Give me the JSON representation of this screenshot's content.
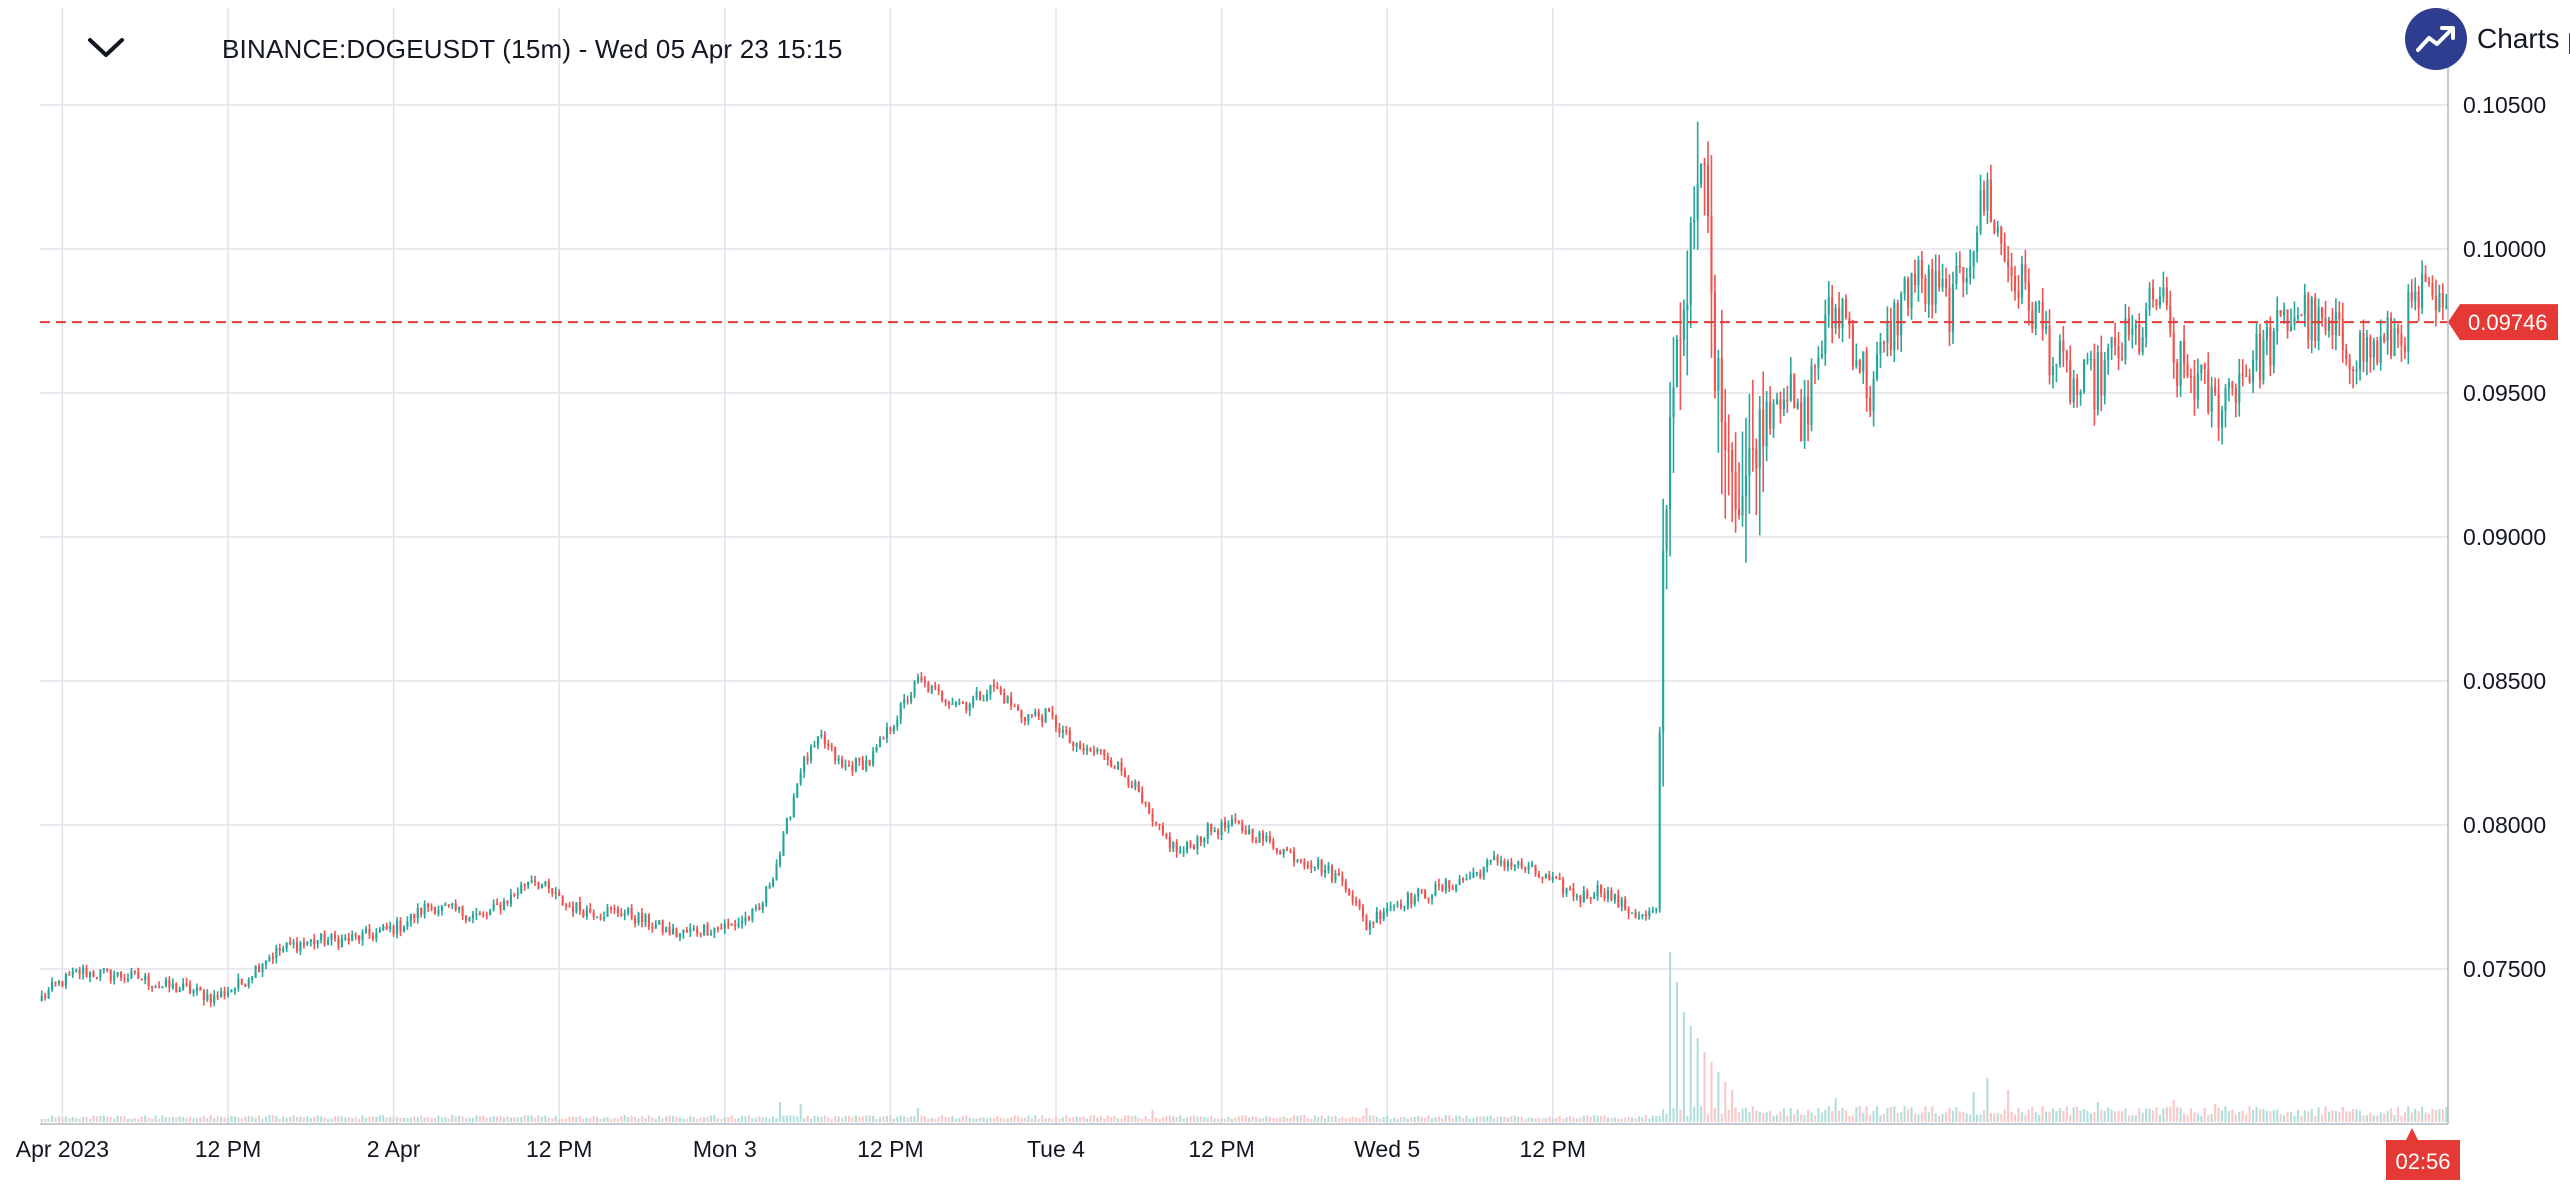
{
  "header": {
    "symbol_title": "BINANCE:DOGEUSDT (15m) - Wed 05 Apr 23 15:15",
    "collapse_icon": "chevron-down-icon"
  },
  "logo": {
    "text": "Charts p",
    "icon": "chart-trend-icon",
    "color": "#2e3d8f"
  },
  "colors": {
    "up": "#26a69a",
    "down": "#ef5350",
    "up_volume": "#b2dfdb",
    "down_volume": "#f8c9c8",
    "grid": "#e0e3eb",
    "price_line": "#e53935",
    "countdown_bg": "#e53935"
  },
  "countdown": "02:56",
  "chart_data": {
    "type": "candlestick",
    "symbol": "BINANCE:DOGEUSDT",
    "interval": "15m",
    "x_ticks": [
      "12 PM",
      "Apr 2023",
      "12 PM",
      "2 Apr",
      "12 PM",
      "Mon 3",
      "12 PM",
      "Tue 4",
      "12 PM",
      "Wed 5",
      "12 PM"
    ],
    "y_ticks": [
      "0.10500",
      "0.10000",
      "0.09500",
      "0.09000",
      "0.08500",
      "0.08000",
      "0.07500"
    ],
    "ylim": [
      0.0715,
      0.105
    ],
    "last_price": 0.09746,
    "grid": true,
    "candles_per_day": 96,
    "start_hour": 22.5,
    "price_anchors": [
      [
        0,
        0.074
      ],
      [
        5,
        0.0745
      ],
      [
        11,
        0.0749
      ],
      [
        20,
        0.0748
      ],
      [
        28,
        0.0747
      ],
      [
        35,
        0.0744
      ],
      [
        42,
        0.0743
      ],
      [
        50,
        0.074
      ],
      [
        58,
        0.0745
      ],
      [
        65,
        0.0754
      ],
      [
        72,
        0.0758
      ],
      [
        80,
        0.076
      ],
      [
        88,
        0.076
      ],
      [
        96,
        0.0762
      ],
      [
        104,
        0.0765
      ],
      [
        112,
        0.0772
      ],
      [
        120,
        0.077
      ],
      [
        128,
        0.0768
      ],
      [
        136,
        0.0775
      ],
      [
        142,
        0.0782
      ],
      [
        146,
        0.0778
      ],
      [
        152,
        0.0772
      ],
      [
        160,
        0.077
      ],
      [
        168,
        0.077
      ],
      [
        176,
        0.0766
      ],
      [
        184,
        0.0762
      ],
      [
        192,
        0.0764
      ],
      [
        200,
        0.0765
      ],
      [
        208,
        0.077
      ],
      [
        214,
        0.079
      ],
      [
        220,
        0.082
      ],
      [
        226,
        0.083
      ],
      [
        232,
        0.082
      ],
      [
        240,
        0.0822
      ],
      [
        248,
        0.0838
      ],
      [
        254,
        0.085
      ],
      [
        260,
        0.0845
      ],
      [
        268,
        0.0842
      ],
      [
        276,
        0.0848
      ],
      [
        284,
        0.0838
      ],
      [
        292,
        0.0838
      ],
      [
        300,
        0.0826
      ],
      [
        308,
        0.0825
      ],
      [
        316,
        0.0815
      ],
      [
        322,
        0.08
      ],
      [
        330,
        0.079
      ],
      [
        338,
        0.0798
      ],
      [
        346,
        0.08
      ],
      [
        354,
        0.0795
      ],
      [
        362,
        0.079
      ],
      [
        370,
        0.0786
      ],
      [
        378,
        0.078
      ],
      [
        384,
        0.0765
      ],
      [
        390,
        0.0772
      ],
      [
        398,
        0.0775
      ],
      [
        406,
        0.0778
      ],
      [
        414,
        0.0782
      ],
      [
        422,
        0.0788
      ],
      [
        430,
        0.0785
      ],
      [
        438,
        0.078
      ],
      [
        446,
        0.0775
      ],
      [
        452,
        0.0778
      ],
      [
        458,
        0.0772
      ],
      [
        464,
        0.0768
      ],
      [
        468,
        0.077
      ],
      [
        470,
        0.089
      ],
      [
        473,
        0.096
      ],
      [
        476,
        0.098
      ],
      [
        479,
        0.101
      ],
      [
        482,
        0.103
      ],
      [
        485,
        0.096
      ],
      [
        488,
        0.094
      ],
      [
        492,
        0.091
      ],
      [
        496,
        0.093
      ],
      [
        500,
        0.0945
      ],
      [
        505,
        0.0955
      ],
      [
        510,
        0.0935
      ],
      [
        514,
        0.096
      ],
      [
        518,
        0.0975
      ],
      [
        522,
        0.098
      ],
      [
        526,
        0.0965
      ],
      [
        530,
        0.095
      ],
      [
        536,
        0.0972
      ],
      [
        542,
        0.099
      ],
      [
        548,
        0.0985
      ],
      [
        554,
        0.098
      ],
      [
        560,
        0.1005
      ],
      [
        564,
        0.102
      ],
      [
        568,
        0.1
      ],
      [
        572,
        0.099
      ],
      [
        578,
        0.0978
      ],
      [
        584,
        0.096
      ],
      [
        590,
        0.095
      ],
      [
        596,
        0.0955
      ],
      [
        602,
        0.0965
      ],
      [
        608,
        0.097
      ],
      [
        614,
        0.0985
      ],
      [
        618,
        0.096
      ],
      [
        624,
        0.0955
      ],
      [
        630,
        0.0945
      ],
      [
        636,
        0.0955
      ],
      [
        642,
        0.0962
      ],
      [
        648,
        0.097
      ],
      [
        654,
        0.098
      ],
      [
        660,
        0.0972
      ],
      [
        666,
        0.0968
      ],
      [
        672,
        0.0965
      ],
      [
        678,
        0.0965
      ],
      [
        684,
        0.0972
      ],
      [
        690,
        0.0983
      ],
      [
        694,
        0.0978
      ],
      [
        697,
        0.0975
      ]
    ],
    "volume_spikes": [
      [
        472,
        0.85
      ],
      [
        474,
        0.7
      ],
      [
        476,
        0.55
      ],
      [
        478,
        0.48
      ],
      [
        480,
        0.42
      ],
      [
        482,
        0.35
      ],
      [
        484,
        0.3
      ],
      [
        486,
        0.25
      ],
      [
        488,
        0.2
      ],
      [
        490,
        0.16
      ],
      [
        214,
        0.1
      ],
      [
        220,
        0.09
      ],
      [
        254,
        0.07
      ],
      [
        322,
        0.06
      ],
      [
        384,
        0.07
      ],
      [
        520,
        0.12
      ],
      [
        560,
        0.15
      ],
      [
        564,
        0.22
      ],
      [
        570,
        0.16
      ],
      [
        596,
        0.1
      ],
      [
        618,
        0.11
      ],
      [
        630,
        0.09
      ]
    ]
  }
}
